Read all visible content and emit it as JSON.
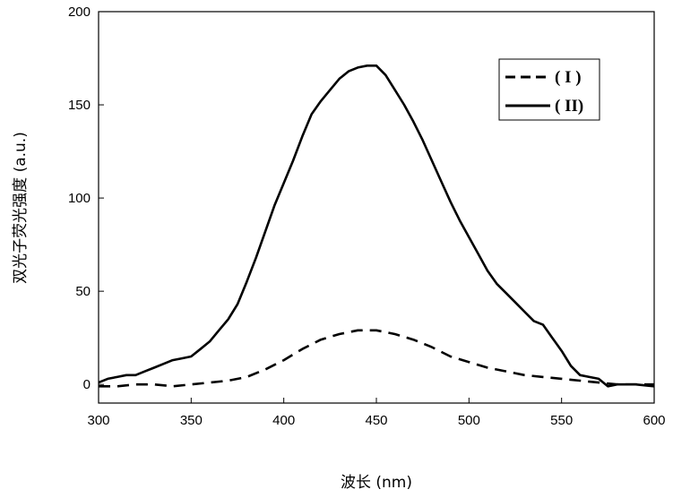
{
  "chart_data": {
    "type": "line",
    "title": "",
    "xlabel": "波长 (nm)",
    "ylabel": "双光子荧光强度 (a.u.)",
    "xlim": [
      300,
      600
    ],
    "ylim": [
      -10,
      200
    ],
    "xticks": [
      300,
      350,
      400,
      450,
      500,
      550,
      600
    ],
    "yticks": [
      0,
      50,
      100,
      150,
      200
    ],
    "grid": false,
    "legend": {
      "placement": "top-right"
    },
    "series": [
      {
        "name": "( I )",
        "style": "dashed",
        "color": "#000000",
        "x": [
          300,
          310,
          320,
          330,
          340,
          350,
          360,
          370,
          380,
          390,
          400,
          410,
          420,
          430,
          440,
          450,
          460,
          470,
          480,
          490,
          500,
          510,
          520,
          530,
          540,
          550,
          560,
          570,
          580,
          590,
          600
        ],
        "y": [
          -1,
          -1,
          0,
          0,
          -1,
          0,
          1,
          2,
          4,
          8,
          13,
          19,
          24,
          27,
          29,
          29,
          27,
          24,
          20,
          15,
          12,
          9,
          7,
          5,
          4,
          3,
          2,
          1,
          0,
          0,
          0
        ]
      },
      {
        "name": "( II)",
        "style": "solid",
        "color": "#000000",
        "x": [
          300,
          305,
          310,
          315,
          320,
          325,
          330,
          335,
          340,
          345,
          350,
          355,
          360,
          365,
          370,
          375,
          380,
          385,
          390,
          395,
          400,
          405,
          410,
          415,
          420,
          425,
          430,
          435,
          440,
          445,
          450,
          455,
          460,
          465,
          470,
          475,
          480,
          485,
          490,
          495,
          500,
          505,
          510,
          515,
          520,
          525,
          530,
          535,
          540,
          545,
          550,
          555,
          560,
          565,
          570,
          575,
          580,
          590,
          600
        ],
        "y": [
          1,
          3,
          4,
          5,
          5,
          7,
          9,
          11,
          13,
          14,
          15,
          19,
          23,
          29,
          35,
          43,
          55,
          68,
          82,
          96,
          108,
          120,
          133,
          145,
          152,
          158,
          164,
          168,
          170,
          171,
          171,
          166,
          158,
          150,
          141,
          131,
          120,
          109,
          98,
          88,
          79,
          70,
          61,
          54,
          49,
          44,
          39,
          34,
          32,
          25,
          18,
          10,
          5,
          4,
          3,
          -1,
          0,
          0,
          -1
        ]
      }
    ]
  }
}
